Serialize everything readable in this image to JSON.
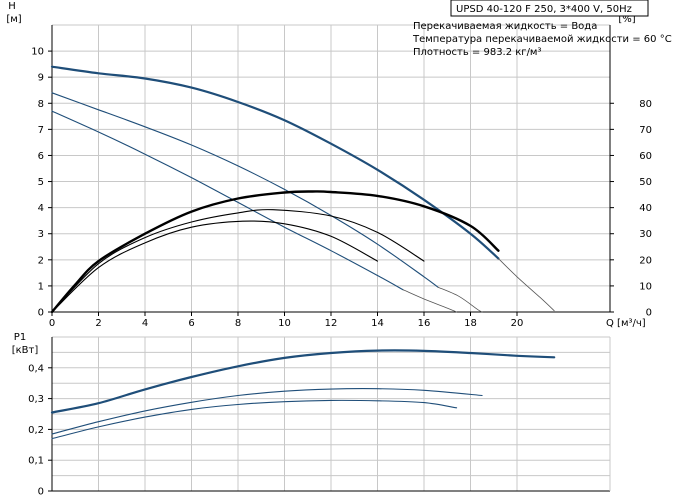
{
  "chart_data": [
    {
      "type": "line",
      "title": "UPSD 40-120 F 250, 3*400 V, 50Hz",
      "notes": [
        "Перекачиваемая жидкость = Вода",
        "Температура перекачиваемой жидкости = 60 °C",
        "Плотность = 983.2 кг/м³"
      ],
      "xlabel": "Q [м³/ч]",
      "ylabel": "H",
      "ylabel_unit": "[м]",
      "y2label": "eta",
      "y2label_unit": "[%]",
      "xlim": [
        0,
        24
      ],
      "ylim": [
        0,
        11
      ],
      "y2lim": [
        0,
        110
      ],
      "x_ticks": [
        "0",
        "2",
        "4",
        "6",
        "8",
        "10",
        "12",
        "14",
        "16",
        "18",
        "20"
      ],
      "y_ticks": [
        "0",
        "1",
        "2",
        "3",
        "4",
        "5",
        "6",
        "7",
        "8",
        "9",
        "10"
      ],
      "y2_ticks": [
        "0",
        "10",
        "20",
        "30",
        "40",
        "50",
        "60",
        "70",
        "80"
      ],
      "grid": true,
      "colors": {
        "pump_curve": "#1f4e79",
        "efficiency_curve": "#000000",
        "extension": "#555555",
        "grid": "#c8c8c8"
      },
      "series": [
        {
          "axis": "left",
          "style": "bold-blue",
          "x": [
            0,
            2,
            4,
            6,
            8,
            10,
            12,
            14,
            16,
            18,
            19.2
          ],
          "y": [
            9.4,
            9.15,
            8.95,
            8.6,
            8.05,
            7.35,
            6.45,
            5.45,
            4.3,
            3.0,
            2.05
          ]
        },
        {
          "axis": "left",
          "style": "thin-ext",
          "x": [
            19.2,
            20,
            21,
            21.6
          ],
          "y": [
            2.05,
            1.35,
            0.55,
            0.05
          ]
        },
        {
          "axis": "left",
          "style": "thin-blue",
          "x": [
            0,
            2,
            4,
            6,
            8,
            10,
            12,
            14,
            16,
            16.6
          ],
          "y": [
            8.4,
            7.75,
            7.1,
            6.4,
            5.6,
            4.7,
            3.7,
            2.6,
            1.35,
            0.95
          ]
        },
        {
          "axis": "left",
          "style": "thin-ext",
          "x": [
            16.6,
            17.5,
            18.3,
            18.5
          ],
          "y": [
            0.95,
            0.6,
            0.1,
            0.0
          ]
        },
        {
          "axis": "left",
          "style": "thin-blue",
          "x": [
            0,
            2,
            4,
            6,
            8,
            10,
            12,
            14,
            15.1
          ],
          "y": [
            7.7,
            6.9,
            6.05,
            5.15,
            4.2,
            3.25,
            2.35,
            1.4,
            0.85
          ]
        },
        {
          "axis": "left",
          "style": "thin-ext",
          "x": [
            15.1,
            16,
            17,
            17.4
          ],
          "y": [
            0.85,
            0.5,
            0.15,
            0.0
          ]
        },
        {
          "axis": "right",
          "style": "bold-black",
          "x": [
            0,
            1,
            2,
            4,
            6,
            8,
            10,
            11.2,
            12,
            14,
            16,
            18,
            19.2
          ],
          "y": [
            0,
            10.5,
            19.5,
            30,
            38.5,
            43.5,
            45.8,
            46.2,
            46,
            44.5,
            40.5,
            33,
            23.5
          ]
        },
        {
          "axis": "right",
          "style": "thin-black",
          "x": [
            0,
            2,
            4,
            6,
            8,
            9.5,
            12,
            14,
            16
          ],
          "y": [
            0,
            18.5,
            28.5,
            34.5,
            38,
            39.2,
            36.8,
            30.5,
            19.5
          ]
        },
        {
          "axis": "right",
          "style": "thin-black",
          "x": [
            0,
            2,
            4,
            6,
            8.2,
            10,
            12,
            14
          ],
          "y": [
            0,
            17,
            26.5,
            32.5,
            34.8,
            33.8,
            29,
            19.5
          ]
        }
      ]
    },
    {
      "type": "line",
      "ylabel": "P1",
      "ylabel_unit": "[кВт]",
      "xlim": [
        0,
        24
      ],
      "ylim": [
        0,
        0.5
      ],
      "y_ticks": [
        "0",
        "0,1",
        "0,2",
        "0,3",
        "0,4"
      ],
      "grid": true,
      "series": [
        {
          "style": "bold-blue",
          "x": [
            0,
            2,
            4,
            6,
            8,
            10,
            12,
            14,
            16,
            18,
            20,
            21.6
          ],
          "y": [
            0.255,
            0.285,
            0.33,
            0.37,
            0.405,
            0.432,
            0.448,
            0.456,
            0.455,
            0.448,
            0.439,
            0.434
          ]
        },
        {
          "style": "thin-blue",
          "x": [
            0,
            2,
            4,
            6,
            8,
            10,
            12,
            14,
            16,
            18.5
          ],
          "y": [
            0.185,
            0.225,
            0.26,
            0.288,
            0.31,
            0.324,
            0.331,
            0.332,
            0.327,
            0.31
          ]
        },
        {
          "style": "thin-blue",
          "x": [
            0,
            2,
            4,
            6,
            8,
            10,
            12,
            14,
            16,
            17.4
          ],
          "y": [
            0.17,
            0.208,
            0.24,
            0.265,
            0.281,
            0.29,
            0.294,
            0.293,
            0.287,
            0.27
          ]
        }
      ]
    }
  ]
}
